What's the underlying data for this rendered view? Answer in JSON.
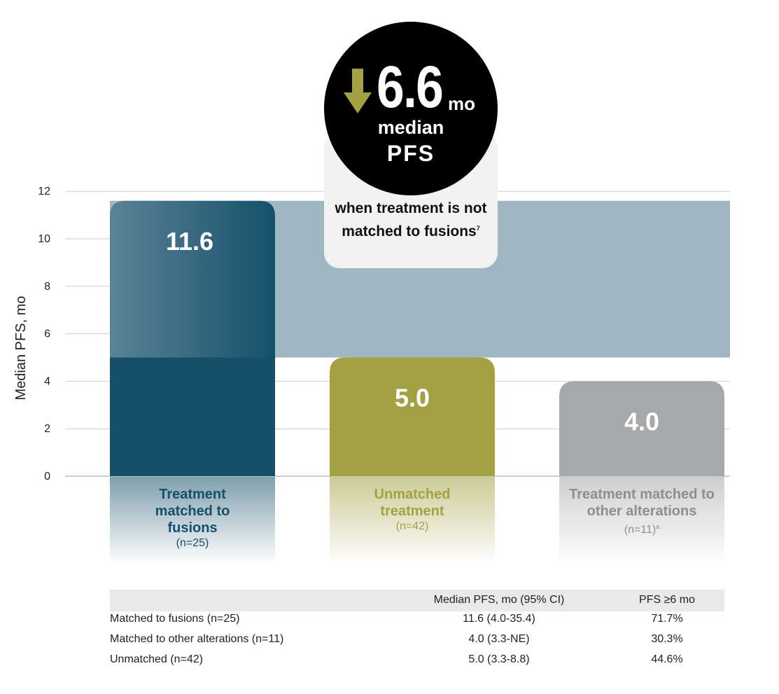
{
  "chart_data": {
    "type": "bar",
    "ylabel": "Median PFS, mo",
    "ylim": [
      0,
      12
    ],
    "yticks": [
      0,
      2,
      4,
      6,
      8,
      10,
      12
    ],
    "grid": true,
    "bars": [
      {
        "value": 11.6,
        "value_label": "11.6",
        "label": "Treatment matched to fusions",
        "n": "(n=25)",
        "sup": "",
        "color": "#15506a",
        "label_color": "#15506a"
      },
      {
        "value": 5.0,
        "value_label": "5.0",
        "label": "Unmatched treatment",
        "n": "(n=42)",
        "sup": "",
        "color": "#a3a142",
        "label_color": "#a3a142"
      },
      {
        "value": 4.0,
        "value_label": "4.0",
        "label": "Treatment matched to other alterations",
        "n": "(n=11)",
        "sup": "a",
        "color": "#a7a8aa",
        "label_color": "#8d8e90"
      }
    ],
    "difference_band": {
      "from": 5.0,
      "to": 11.6,
      "color": "#9fb7c2"
    },
    "callout": {
      "value": "6.6",
      "unit": "mo",
      "line1": "median",
      "line2": "PFS",
      "text": "when treatment is not matched to fusions",
      "ref": "7",
      "icon": "down-arrow-icon",
      "icon_color": "#a3a142"
    }
  },
  "table": {
    "headers": [
      "",
      "Median PFS, mo (95% CI)",
      "PFS ≥6 mo"
    ],
    "rows": [
      [
        "Matched to fusions (n=25)",
        "11.6 (4.0-35.4)",
        "71.7%"
      ],
      [
        "Matched to other alterations (n=11)",
        "4.0 (3.3-NE)",
        "30.3%"
      ],
      [
        "Unmatched (n=42)",
        "5.0 (3.3-8.8)",
        "44.6%"
      ]
    ]
  }
}
